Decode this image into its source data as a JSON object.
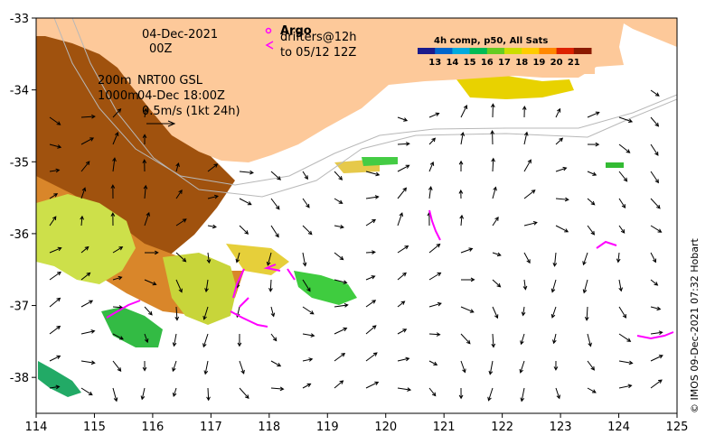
{
  "map": {
    "date_line1": "04-Dec-2021",
    "date_line2": "00Z",
    "depth_200": "200m",
    "depth_1000": "1000m",
    "product": "NRT00 GSL",
    "current_time": "04-Dec 18:00Z",
    "scale_label": "0.5m/s (1kt 24h)",
    "argo_label": "Argo",
    "drifters_label": "drifters@12h",
    "drifters_to": "to 05/12 12Z",
    "colorbar_title": "4h comp, p50, All Sats",
    "colorbar_ticks": [
      "13",
      "14",
      "15",
      "16",
      "17",
      "18",
      "19",
      "20",
      "21"
    ],
    "colorbar_colors": [
      "#1a1a8c",
      "#0066cc",
      "#00aadd",
      "#00bb55",
      "#66cc22",
      "#ccdd00",
      "#ffcc00",
      "#ff8800",
      "#dd2200",
      "#8b1a00"
    ],
    "credit": "© IMOS 09-Dec-2021 07:32 Hobart",
    "x_ticks": [
      "114",
      "115",
      "116",
      "117",
      "118",
      "119",
      "120",
      "121",
      "122",
      "123",
      "124",
      "125"
    ],
    "y_ticks": [
      "-33",
      "-34",
      "-35",
      "-36",
      "-37",
      "-38"
    ],
    "lon_range": [
      114,
      125
    ],
    "lat_range": [
      -38.5,
      -33
    ],
    "land_color": "#fdc99a",
    "drifter_color": "#ff00ff"
  }
}
